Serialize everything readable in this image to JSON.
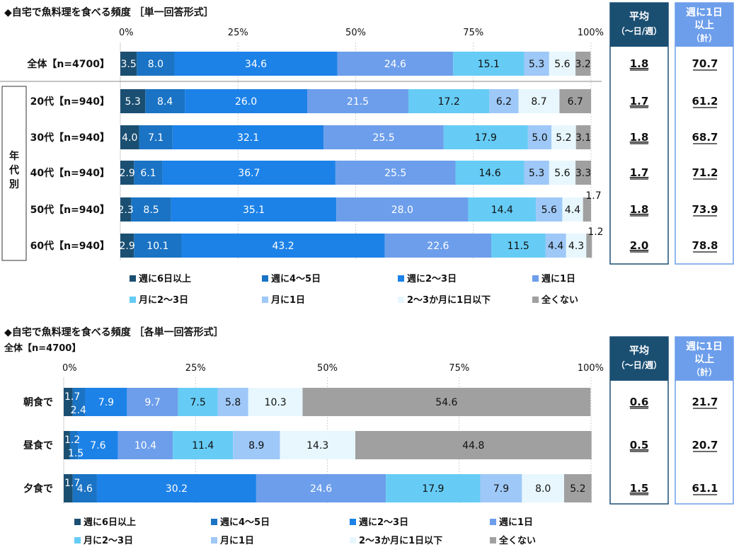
{
  "colors": {
    "series": [
      "#1b4f72",
      "#1a73c4",
      "#1c82e8",
      "#6d9eeb",
      "#66ccf5",
      "#9ec8f7",
      "#e7f7fd",
      "#a0a0a0"
    ],
    "header_fill": "#1b4f72",
    "header_text": "#ffffff",
    "panel_border_left": "#1b4f72",
    "panel_border_right": "#6d9eeb"
  },
  "section1": {
    "title": "◆自宅で魚料理を食べる頻度 ［単一回答形式］",
    "col_avg_header": [
      "平均",
      "（〜日/週）"
    ],
    "col_weekly_header": [
      "週に1日",
      "以上",
      "（計）"
    ],
    "group_label": "年代別",
    "legend": [
      "週に6日以上",
      "週に4〜5日",
      "週に2〜3日",
      "週に1日",
      "月に2〜3日",
      "月に1日",
      "2〜3か月に1日以下",
      "全くない"
    ]
  },
  "section2": {
    "title": "◆自宅で魚料理を食べる頻度 ［各単一回答形式］",
    "subtitle": "全体【n=4700】",
    "col_avg_header": [
      "平均",
      "（〜日/週）"
    ],
    "col_weekly_header": [
      "週に1日",
      "以上",
      "（計）"
    ],
    "legend": [
      "週に6日以上",
      "週に4〜5日",
      "週に2〜3日",
      "週に1日",
      "月に2〜3日",
      "月に1日",
      "2〜3か月に1日以下",
      "全くない"
    ]
  },
  "chart_data": [
    {
      "type": "bar",
      "orientation": "horizontal-stacked-100",
      "title": "◆自宅で魚料理を食べる頻度 ［単一回答形式］",
      "x_ticks": [
        "0%",
        "25%",
        "50%",
        "75%",
        "100%"
      ],
      "xlim": [
        0,
        100
      ],
      "categories": [
        "全体【n=4700】",
        "20代【n=940】",
        "30代【n=940】",
        "40代【n=940】",
        "50代【n=940】",
        "60代【n=940】"
      ],
      "series": [
        {
          "name": "週に6日以上",
          "values": [
            3.5,
            5.3,
            4.0,
            2.9,
            2.3,
            2.9
          ]
        },
        {
          "name": "週に4〜5日",
          "values": [
            8.0,
            8.4,
            7.1,
            6.1,
            8.5,
            10.1
          ]
        },
        {
          "name": "週に2〜3日",
          "values": [
            34.6,
            26.0,
            32.1,
            36.7,
            35.1,
            43.2
          ]
        },
        {
          "name": "週に1日",
          "values": [
            24.6,
            21.5,
            25.5,
            25.5,
            28.0,
            22.6
          ]
        },
        {
          "name": "月に2〜3日",
          "values": [
            15.1,
            17.2,
            17.9,
            14.6,
            14.4,
            11.5
          ]
        },
        {
          "name": "月に1日",
          "values": [
            5.3,
            6.2,
            5.0,
            5.3,
            5.6,
            4.4
          ]
        },
        {
          "name": "2〜3か月に1日以下",
          "values": [
            5.6,
            8.7,
            5.2,
            5.6,
            4.4,
            4.3
          ]
        },
        {
          "name": "全くない",
          "values": [
            3.2,
            6.7,
            3.1,
            3.3,
            1.7,
            1.2
          ]
        }
      ],
      "avg_per_week": [
        "1.8",
        "1.7",
        "1.8",
        "1.7",
        "1.8",
        "2.0"
      ],
      "weekly_or_more_total": [
        "70.7",
        "61.2",
        "68.7",
        "71.2",
        "73.9",
        "78.8"
      ]
    },
    {
      "type": "bar",
      "orientation": "horizontal-stacked-100",
      "title": "◆自宅で魚料理を食べる頻度 ［各単一回答形式］",
      "subtitle": "全体【n=4700】",
      "x_ticks": [
        "0%",
        "25%",
        "50%",
        "75%",
        "100%"
      ],
      "xlim": [
        0,
        100
      ],
      "categories": [
        "朝食で",
        "昼食で",
        "夕食で"
      ],
      "series": [
        {
          "name": "週に6日以上",
          "values": [
            1.7,
            1.2,
            1.7
          ]
        },
        {
          "name": "週に4〜5日",
          "values": [
            2.4,
            1.5,
            4.6
          ]
        },
        {
          "name": "週に2〜3日",
          "values": [
            7.9,
            7.6,
            30.2
          ]
        },
        {
          "name": "週に1日",
          "values": [
            9.7,
            10.4,
            24.6
          ]
        },
        {
          "name": "月に2〜3日",
          "values": [
            7.5,
            11.4,
            17.9
          ]
        },
        {
          "name": "月に1日",
          "values": [
            5.8,
            8.9,
            7.9
          ]
        },
        {
          "name": "2〜3か月に1日以下",
          "values": [
            10.3,
            14.3,
            8.0
          ]
        },
        {
          "name": "全くない",
          "values": [
            54.6,
            44.8,
            5.2
          ]
        }
      ],
      "avg_per_week": [
        "0.6",
        "0.5",
        "1.5"
      ],
      "weekly_or_more_total": [
        "21.7",
        "20.7",
        "61.1"
      ]
    }
  ]
}
